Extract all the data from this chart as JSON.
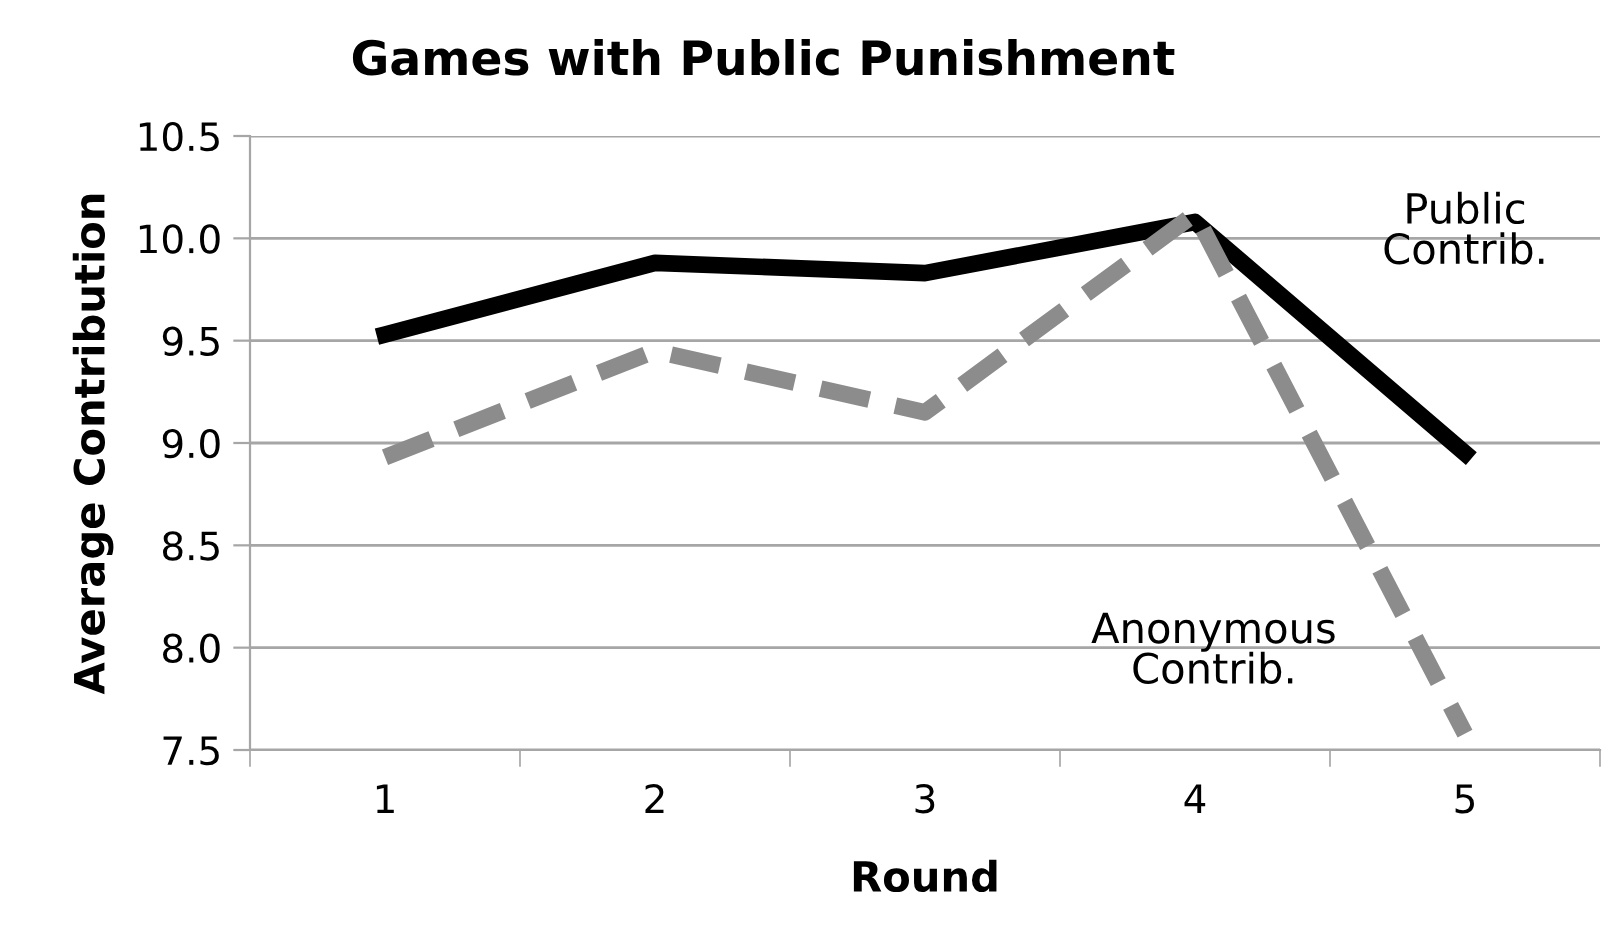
{
  "chart_data": {
    "type": "line",
    "title": "Games with Public Punishment",
    "xlabel": "Round",
    "ylabel": "Average Contribution",
    "categories": [
      "1",
      "2",
      "3",
      "4",
      "5"
    ],
    "series": [
      {
        "name": "Public Contrib.",
        "color": "#000000",
        "line_style": "solid",
        "values": [
          9.53,
          9.88,
          9.83,
          10.08,
          8.95
        ]
      },
      {
        "name": "Anonymous Contrib.",
        "color": "#8c8c8c",
        "line_style": "dashed",
        "values": [
          8.93,
          9.45,
          9.15,
          10.12,
          7.58
        ]
      }
    ],
    "ylim": [
      7.5,
      10.5
    ],
    "yticks": [
      {
        "value": 7.5,
        "label": "7.5"
      },
      {
        "value": 8.0,
        "label": "8.0"
      },
      {
        "value": 8.5,
        "label": "8.5"
      },
      {
        "value": 9.0,
        "label": "9.0"
      },
      {
        "value": 9.5,
        "label": "9.5"
      },
      {
        "value": 10.0,
        "label": "10.0"
      },
      {
        "value": 10.5,
        "label": "10.5"
      }
    ],
    "grid": "y",
    "legend": false,
    "marker": "none"
  }
}
